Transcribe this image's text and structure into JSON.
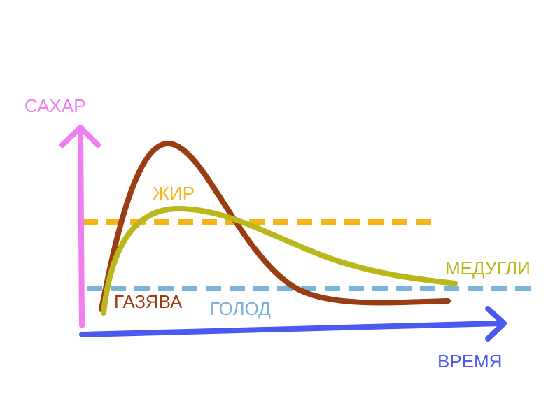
{
  "axes": {
    "y_label": "САХАР",
    "x_label": "ВРЕМЯ"
  },
  "lines": [
    {
      "label": "ЖИР"
    },
    {
      "label": "ГОЛОД"
    }
  ],
  "curves": [
    {
      "label": "ГАЗЯВА"
    },
    {
      "label": "МЕДУГЛИ"
    }
  ]
}
